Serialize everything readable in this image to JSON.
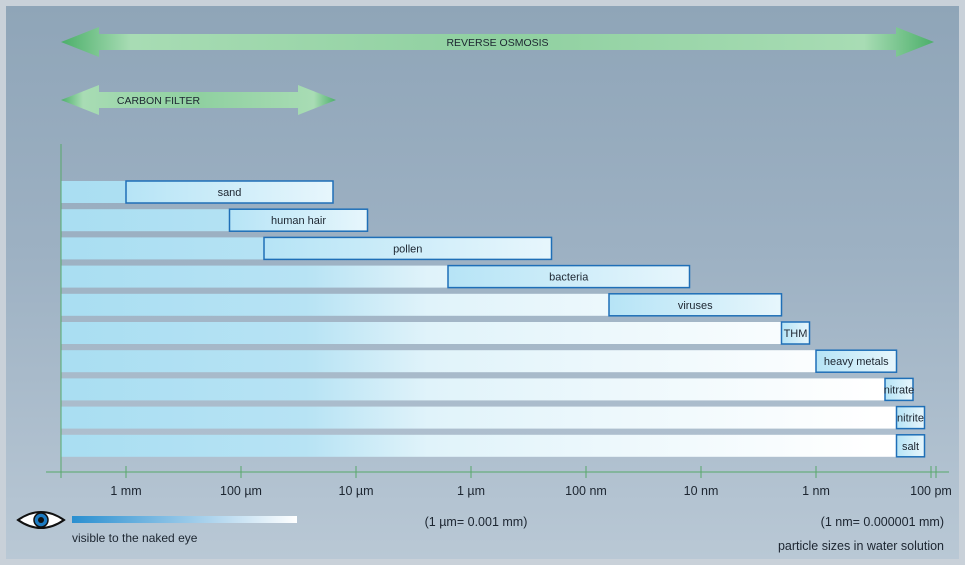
{
  "chart_data": {
    "type": "bar",
    "subtype": "range",
    "filters": [
      {
        "name": "REVERSE OSMOSIS",
        "from": "1 mm",
        "to": "100 pm"
      },
      {
        "name": "CARBON FILTER",
        "from": "1 mm",
        "to": "10 µm"
      }
    ],
    "categories": [
      "sand",
      "human hair",
      "pollen",
      "bacteria",
      "viruses",
      "THM",
      "heavy metals",
      "nitrate",
      "nitrite",
      "salt"
    ],
    "x_ticks": [
      "1 mm",
      "100 µm",
      "10 µm",
      "1 µm",
      "100 nm",
      "10 nm",
      "1 nm",
      "100 pm"
    ],
    "x_scale": "log",
    "ranges_log10_m": [
      [
        -3.0,
        -4.8
      ],
      [
        -3.9,
        -5.1
      ],
      [
        -4.2,
        -6.7
      ],
      [
        -5.8,
        -7.9
      ],
      [
        -7.2,
        -8.7
      ],
      [
        -8.7,
        -8.9
      ],
      [
        -9.0,
        -9.7
      ],
      [
        -9.6,
        -9.8
      ],
      [
        -9.7,
        -9.8
      ],
      [
        -9.7,
        -9.8
      ]
    ],
    "notes": {
      "um": "(1 µm= 0.001 mm)",
      "nm": "(1 nm= 0.000001 mm)",
      "caption": "particle sizes in water solution",
      "eye_label": "visible to the naked eye"
    },
    "colors": {
      "bar_border": "#1f6fb7",
      "bar_fill_start": "#a9def2",
      "arrow_green": "#5fbf78",
      "axis": "#57a86a"
    }
  }
}
